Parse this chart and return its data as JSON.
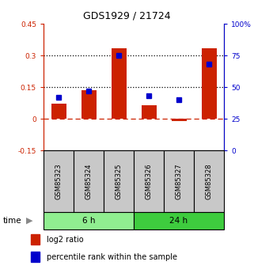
{
  "title": "GDS1929 / 21724",
  "samples": [
    "GSM85323",
    "GSM85324",
    "GSM85325",
    "GSM85326",
    "GSM85327",
    "GSM85328"
  ],
  "log2_ratio": [
    0.07,
    0.135,
    0.335,
    0.065,
    -0.01,
    0.335
  ],
  "percentile_rank": [
    42,
    47,
    75,
    43,
    40,
    68
  ],
  "groups": [
    {
      "label": "6 h",
      "indices": [
        0,
        1,
        2
      ],
      "color": "#90EE90"
    },
    {
      "label": "24 h",
      "indices": [
        3,
        4,
        5
      ],
      "color": "#3ECC3E"
    }
  ],
  "left_ylim": [
    -0.15,
    0.45
  ],
  "right_ylim": [
    0,
    100
  ],
  "left_yticks": [
    -0.15,
    0.0,
    0.15,
    0.3,
    0.45
  ],
  "right_yticks": [
    0,
    25,
    50,
    75,
    100
  ],
  "left_ytick_labels": [
    "-0.15",
    "0",
    "0.15",
    "0.3",
    "0.45"
  ],
  "right_ytick_labels": [
    "0",
    "25",
    "50",
    "75",
    "100%"
  ],
  "hlines": [
    0.15,
    0.3
  ],
  "bar_color": "#CC2200",
  "dot_color": "#0000CC",
  "zero_line_color": "#CC2200",
  "bar_width": 0.5,
  "legend_items": [
    {
      "color": "#CC2200",
      "label": "log2 ratio"
    },
    {
      "color": "#0000CC",
      "label": "percentile rank within the sample"
    }
  ],
  "sample_box_color": "#C8C8C8",
  "time_label": "time"
}
